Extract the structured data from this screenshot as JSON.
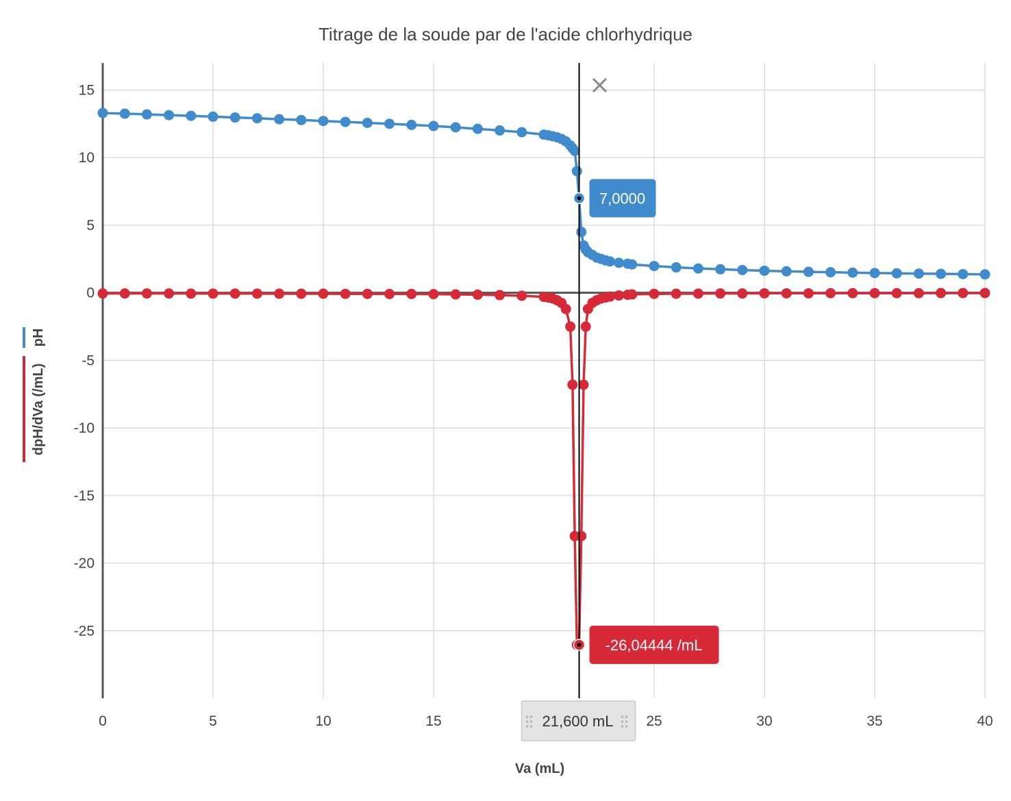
{
  "chart_data": {
    "type": "line",
    "title": "Titrage de la soude par de l'acide chlorhydrique",
    "xlabel": "Va (mL)",
    "ylabels": [
      "dpH/dVa (/mL)",
      "pH"
    ],
    "xlim": [
      0,
      40
    ],
    "ylim": [
      -30,
      17
    ],
    "x_ticks": [
      "0",
      "5",
      "10",
      "15",
      "25",
      "30",
      "35",
      "40"
    ],
    "y_ticks": [
      "15",
      "10",
      "5",
      "0",
      "-5",
      "-10",
      "-15",
      "-20",
      "-25"
    ],
    "grid": true,
    "colors": {
      "ph": "#3f8bcb",
      "deriv": "#d62a38",
      "cursor": "#000000"
    },
    "series": [
      {
        "name": "pH",
        "x": [
          0,
          1,
          2,
          3,
          4,
          5,
          6,
          7,
          8,
          9,
          10,
          11,
          12,
          13,
          14,
          15,
          16,
          17,
          18,
          19,
          20,
          20.2,
          20.4,
          20.6,
          20.8,
          21.0,
          21.2,
          21.3,
          21.4,
          21.5,
          21.6,
          21.7,
          21.8,
          21.9,
          22.0,
          22.2,
          22.4,
          22.6,
          22.8,
          23.0,
          23.4,
          23.8,
          24,
          25,
          26,
          27,
          28,
          29,
          30,
          31,
          32,
          33,
          34,
          35,
          36,
          37,
          38,
          39,
          40
        ],
        "y": [
          13.3,
          13.25,
          13.2,
          13.14,
          13.09,
          13.03,
          12.97,
          12.91,
          12.84,
          12.78,
          12.71,
          12.64,
          12.57,
          12.5,
          12.42,
          12.34,
          12.24,
          12.13,
          12.01,
          11.88,
          11.7,
          11.65,
          11.58,
          11.5,
          11.38,
          11.2,
          10.9,
          10.7,
          10.5,
          9.0,
          7.0,
          4.5,
          3.5,
          3.2,
          3.0,
          2.8,
          2.6,
          2.5,
          2.4,
          2.32,
          2.22,
          2.15,
          2.1,
          1.98,
          1.88,
          1.8,
          1.74,
          1.68,
          1.63,
          1.59,
          1.55,
          1.52,
          1.49,
          1.46,
          1.44,
          1.42,
          1.4,
          1.38,
          1.36
        ]
      },
      {
        "name": "dpH/dVa (/mL)",
        "x": [
          0,
          1,
          2,
          3,
          4,
          5,
          6,
          7,
          8,
          9,
          10,
          11,
          12,
          13,
          14,
          15,
          16,
          17,
          18,
          19,
          20,
          20.2,
          20.4,
          20.6,
          20.8,
          21.0,
          21.2,
          21.3,
          21.4,
          21.5,
          21.6,
          21.7,
          21.8,
          21.9,
          22.0,
          22.2,
          22.4,
          22.6,
          22.8,
          23.0,
          23.4,
          23.8,
          24,
          25,
          26,
          27,
          28,
          29,
          30,
          31,
          32,
          33,
          34,
          35,
          36,
          37,
          38,
          39,
          40
        ],
        "y": [
          -0.05,
          -0.05,
          -0.05,
          -0.05,
          -0.06,
          -0.06,
          -0.06,
          -0.06,
          -0.07,
          -0.07,
          -0.07,
          -0.08,
          -0.08,
          -0.09,
          -0.09,
          -0.1,
          -0.12,
          -0.14,
          -0.17,
          -0.22,
          -0.3,
          -0.35,
          -0.42,
          -0.55,
          -0.75,
          -1.2,
          -2.5,
          -6.8,
          -18,
          -26.04444,
          -26.04444,
          -18,
          -6.8,
          -2.5,
          -1.2,
          -0.75,
          -0.55,
          -0.42,
          -0.35,
          -0.28,
          -0.2,
          -0.15,
          -0.12,
          -0.08,
          -0.07,
          -0.06,
          -0.05,
          -0.05,
          -0.04,
          -0.04,
          -0.04,
          -0.03,
          -0.03,
          -0.03,
          -0.03,
          -0.03,
          -0.02,
          -0.02,
          -0.02
        ]
      }
    ],
    "cursor": {
      "x": 21.6,
      "label": "21,600 mL",
      "ph_value": 7.0,
      "ph_label": "7,0000",
      "deriv_value": -26.04444,
      "deriv_label": "-26,04444 /mL"
    }
  }
}
